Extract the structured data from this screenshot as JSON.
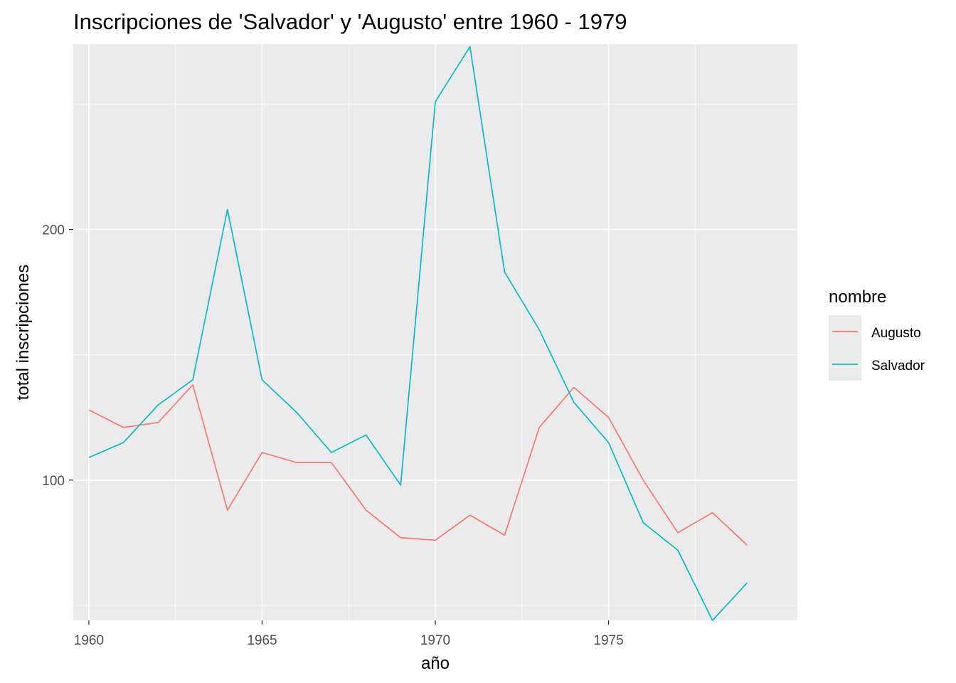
{
  "chart_data": {
    "type": "line",
    "title": "Inscripciones de 'Salvador' y 'Augusto' entre 1960 - 1979",
    "xlabel": "año",
    "ylabel": "total inscripciones",
    "x": [
      1960,
      1961,
      1962,
      1963,
      1964,
      1965,
      1966,
      1967,
      1968,
      1969,
      1970,
      1971,
      1972,
      1973,
      1974,
      1975,
      1976,
      1977,
      1978,
      1979
    ],
    "xlim": [
      1959.55,
      1980.45
    ],
    "ylim": [
      44,
      274
    ],
    "xticks": [
      1960,
      1965,
      1970,
      1975
    ],
    "yticks": [
      100,
      200
    ],
    "xtick_labels": [
      "1960",
      "1965",
      "1970",
      "1975"
    ],
    "ytick_labels": [
      "100",
      "200"
    ],
    "grid": true,
    "legend": {
      "title": "nombre",
      "position": "right"
    },
    "series": [
      {
        "name": "Augusto",
        "color": "#F8766D",
        "values": [
          128,
          121,
          123,
          138,
          88,
          111,
          107,
          107,
          88,
          77,
          76,
          86,
          78,
          121,
          137,
          125,
          100,
          79,
          87,
          74
        ]
      },
      {
        "name": "Salvador",
        "color": "#00BFC4",
        "values": [
          109,
          115,
          130,
          140,
          208,
          140,
          127,
          111,
          118,
          98,
          251,
          273,
          183,
          160,
          131,
          115,
          83,
          72,
          44,
          59
        ]
      }
    ]
  }
}
